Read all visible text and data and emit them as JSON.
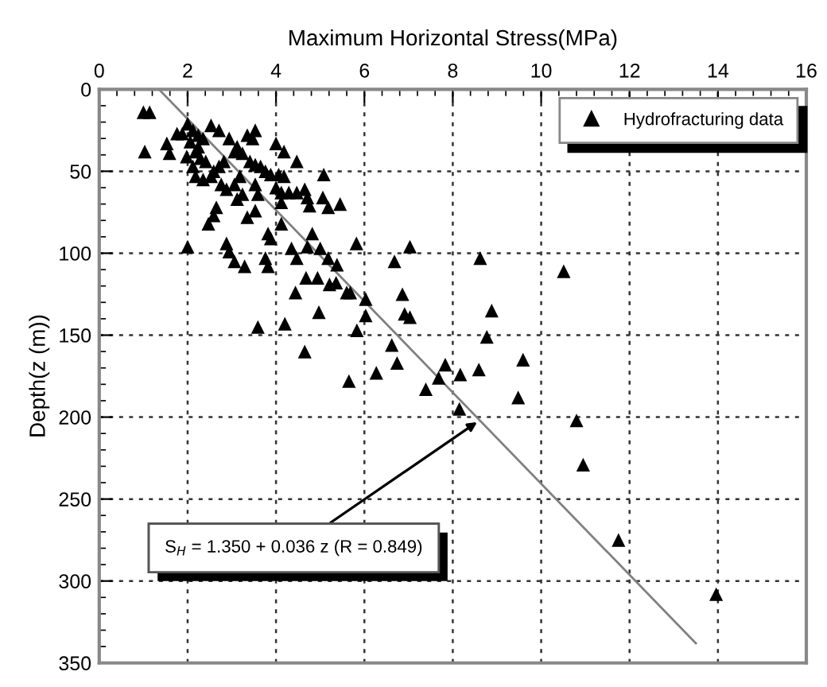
{
  "chart_data": {
    "type": "scatter",
    "xlabel": "Maximum Horizontal Stress(MPa)",
    "ylabel": "Depth(z (m))",
    "xlim": [
      0,
      16
    ],
    "xticks": [
      0,
      2,
      4,
      6,
      8,
      10,
      12,
      14,
      16
    ],
    "ylim": [
      350,
      0
    ],
    "yticks": [
      0,
      50,
      100,
      150,
      200,
      250,
      300,
      350
    ],
    "grid": true,
    "legend": "top right",
    "series": [
      {
        "name": "Hydrofracturing data",
        "marker": "triangle",
        "color": "#000000",
        "x": [
          1.0,
          1.14,
          1.03,
          1.53,
          1.59,
          2.0,
          1.88,
          1.76,
          2.12,
          2.24,
          2.06,
          2.35,
          2.53,
          2.71,
          2.24,
          2.18,
          1.98,
          2.29,
          2.41,
          2.12,
          2.18,
          2.35,
          2.53,
          2.59,
          2.71,
          2.82,
          2.94,
          3.12,
          3.06,
          3.24,
          3.35,
          3.53,
          3.47,
          3.41,
          3.53,
          3.65,
          3.76,
          3.88,
          4.06,
          4.18,
          4.0,
          4.18,
          4.47,
          5.08,
          2.76,
          2.88,
          3.06,
          3.18,
          3.24,
          3.12,
          3.53,
          3.59,
          4.0,
          4.12,
          4.29,
          4.47,
          4.65,
          4.71,
          4.76,
          5.06,
          5.18,
          5.45,
          4.82,
          4.12,
          4.12,
          2.65,
          2.59,
          2.47,
          3.53,
          3.35,
          3.82,
          3.88,
          2.0,
          2.88,
          2.94,
          3.06,
          3.76,
          4.35,
          4.47,
          4.71,
          5.0,
          5.18,
          5.82,
          3.29,
          3.82,
          5.38,
          7.03,
          6.68,
          8.62,
          10.51,
          6.86,
          8.88,
          6.91,
          7.03,
          8.77,
          9.59,
          6.62,
          6.74,
          7.83,
          8.17,
          8.59,
          7.68,
          7.39,
          9.48,
          8.15,
          10.8,
          6.27,
          5.65,
          5.83,
          6.03,
          6.03,
          4.68,
          4.94,
          5.21,
          5.36,
          4.44,
          5.6,
          5.68,
          4.97,
          4.2,
          3.59,
          4.65,
          10.95,
          11.75,
          13.96
        ],
        "values": [
          14,
          14,
          38,
          33,
          39,
          21,
          27,
          27,
          25,
          28,
          32,
          30,
          22,
          25,
          35,
          38,
          41,
          42,
          44,
          47,
          53,
          55,
          53,
          50,
          47,
          44,
          30,
          35,
          38,
          39,
          28,
          25,
          30,
          44,
          46,
          47,
          50,
          52,
          52,
          53,
          33,
          38,
          44,
          52,
          58,
          61,
          58,
          53,
          64,
          67,
          58,
          64,
          60,
          63,
          63,
          63,
          61,
          66,
          71,
          66,
          72,
          70,
          88,
          69,
          82,
          72,
          77,
          82,
          74,
          78,
          88,
          91,
          96,
          94,
          99,
          105,
          103,
          97,
          103,
          96,
          97,
          103,
          94,
          108,
          108,
          107,
          96,
          105,
          103,
          111,
          125,
          135,
          137,
          139,
          151,
          165,
          156,
          167,
          168,
          174,
          171,
          176,
          183,
          188,
          195,
          202,
          173,
          178,
          147,
          138,
          128,
          115,
          115,
          119,
          118,
          124,
          124,
          124,
          136,
          143,
          145,
          160,
          229,
          275,
          308
        ]
      },
      {
        "type": "line",
        "marker": "none",
        "color": "#808080",
        "x": [
          1.35,
          13.5
        ],
        "values": [
          0,
          338
        ]
      }
    ],
    "annotations": [
      {
        "text": "S$_{H}$ = 1.350 + 0.036 z (R = 0.849)",
        "x": 8.55,
        "y": 203
      }
    ]
  }
}
